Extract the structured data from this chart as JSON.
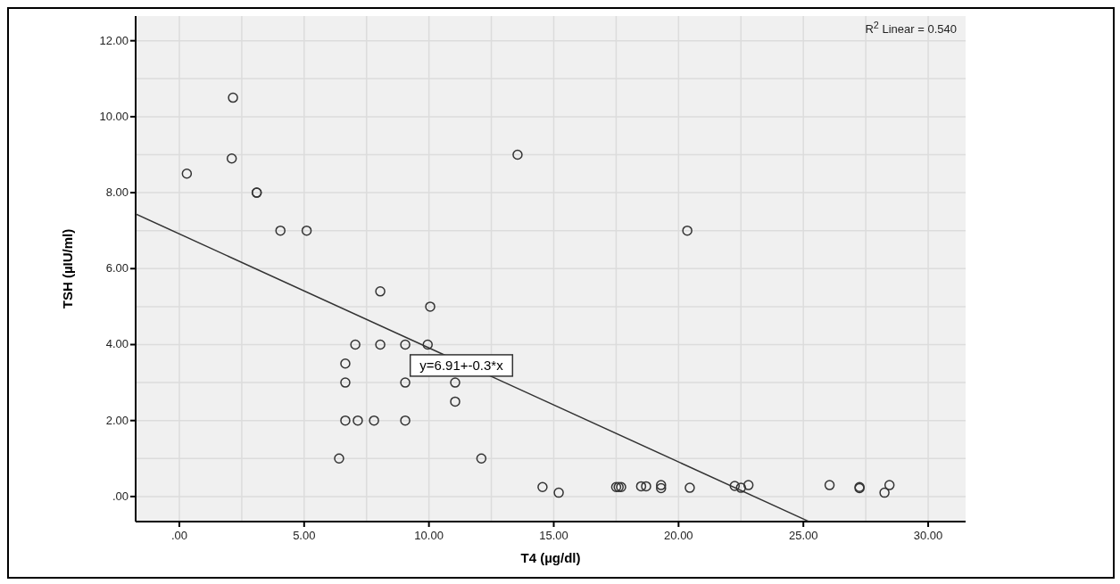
{
  "chart_data": {
    "type": "scatter",
    "xlabel": "T4 (µg/dl)",
    "ylabel": "TSH (µIU/ml)",
    "xlim": [
      -1.75,
      31.5
    ],
    "ylim": [
      -0.66,
      12.65
    ],
    "xticks": [
      {
        "value": 0,
        "label": ".00"
      },
      {
        "value": 2.5,
        "label": null
      },
      {
        "value": 5,
        "label": "5.00"
      },
      {
        "value": 7.5,
        "label": null
      },
      {
        "value": 10,
        "label": "10.00"
      },
      {
        "value": 12.5,
        "label": null
      },
      {
        "value": 15,
        "label": "15.00"
      },
      {
        "value": 17.5,
        "label": null
      },
      {
        "value": 20,
        "label": "20.00"
      },
      {
        "value": 22.5,
        "label": null
      },
      {
        "value": 25,
        "label": "25.00"
      },
      {
        "value": 27.5,
        "label": null
      },
      {
        "value": 30,
        "label": "30.00"
      }
    ],
    "yticks": [
      {
        "value": 0,
        "label": ".00"
      },
      {
        "value": 1,
        "label": null
      },
      {
        "value": 2,
        "label": "2.00"
      },
      {
        "value": 3,
        "label": null
      },
      {
        "value": 4,
        "label": "4.00"
      },
      {
        "value": 5,
        "label": null
      },
      {
        "value": 6,
        "label": "6.00"
      },
      {
        "value": 7,
        "label": null
      },
      {
        "value": 8,
        "label": "8.00"
      },
      {
        "value": 9,
        "label": null
      },
      {
        "value": 10,
        "label": "10.00"
      },
      {
        "value": 11,
        "label": null
      },
      {
        "value": 12,
        "label": "12.00"
      }
    ],
    "grid": true,
    "series": [
      {
        "marker": "circle",
        "color": "#333333",
        "x": [
          0.3,
          2.15,
          2.1,
          3.1,
          3.1,
          4.05,
          5.1,
          8.05,
          10.05,
          7.05,
          8.05,
          9.05,
          9.95,
          6.65,
          6.65,
          9.05,
          11.05,
          11.05,
          6.65,
          7.15,
          7.8,
          9.05,
          6.4,
          12.1,
          13.55,
          20.35,
          14.55,
          15.2,
          17.5,
          17.6,
          17.7,
          18.5,
          18.7,
          19.3,
          19.3,
          20.45,
          22.25,
          22.5,
          22.8,
          26.05,
          27.25,
          27.25,
          28.25,
          28.45
        ],
        "values": [
          8.5,
          10.5,
          8.9,
          8.0,
          8.0,
          7.0,
          7.0,
          5.4,
          5.0,
          4.0,
          4.0,
          4.0,
          4.0,
          3.5,
          3.0,
          3.0,
          3.0,
          2.5,
          2.0,
          2.0,
          2.0,
          2.0,
          1.0,
          1.0,
          9.0,
          7.0,
          0.25,
          0.1,
          0.25,
          0.25,
          0.25,
          0.27,
          0.27,
          0.3,
          0.22,
          0.23,
          0.28,
          0.23,
          0.3,
          0.3,
          0.25,
          0.22,
          0.1,
          0.3
        ]
      },
      {
        "type": "line",
        "marker": "none",
        "color": "#333333",
        "x": [
          -1.75,
          25.2
        ],
        "values": [
          7.44,
          -0.65
        ]
      }
    ],
    "annotations": [
      "R$^{2}$ Linear = 0.540",
      {
        "text": "y=6.91+-0.3*x",
        "x": 11.3,
        "y": 3.45
      }
    ]
  }
}
